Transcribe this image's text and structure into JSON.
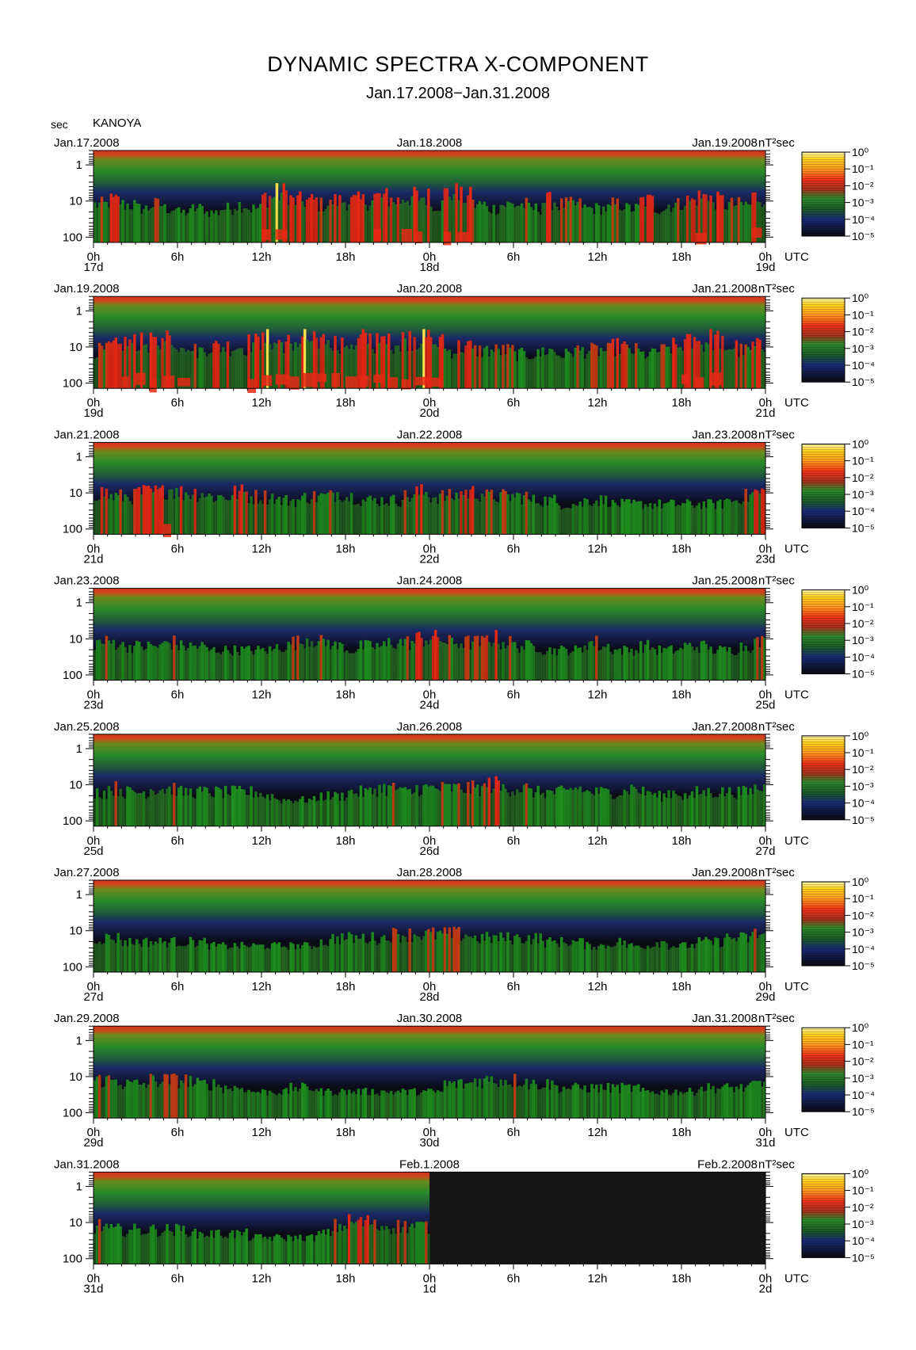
{
  "title": "DYNAMIC SPECTRA X-COMPONENT",
  "subtitle": "Jan.17.2008−Jan.31.2008",
  "station": "KANOYA",
  "y_unit_label": "sec",
  "colorbar_unit": "nT²sec",
  "colors": {
    "background": "#ffffff",
    "spectrum_quiet": "#0a0a14",
    "spectrum_low": "#141e5a",
    "spectrum_mid": "#1e8c1e",
    "spectrum_high": "#e62814",
    "spectrum_peak": "#ffe61e"
  },
  "chart_data": {
    "type": "heatmap",
    "variable": "power spectral density",
    "unit": "nT²sec",
    "y_axis": {
      "label": "sec",
      "scale": "log",
      "ticks": [
        "1",
        "10",
        "100"
      ],
      "range": [
        0.4,
        140
      ]
    },
    "x_axis": {
      "tick_labels": [
        "0h",
        "6h",
        "12h",
        "18h",
        "0h",
        "6h",
        "12h",
        "18h",
        "0h"
      ],
      "unit_label": "UTC"
    },
    "colorbar": {
      "scale": "log",
      "range": [
        1e-05,
        1
      ],
      "ticks": [
        "10⁰",
        "10⁻¹",
        "10⁻²",
        "10⁻³",
        "10⁻⁴",
        "10⁻⁵"
      ]
    },
    "panels": [
      {
        "left_date": "Jan.17.2008",
        "mid_date": "Jan.18.2008",
        "right_date": "Jan.19.2008",
        "day_labels": [
          "17d",
          "18d",
          "19d"
        ],
        "data_fraction": 1.0,
        "activity": [
          0.6,
          0.7,
          0.6,
          0.5,
          0.6,
          0.5,
          0.4,
          0.5,
          0.4,
          0.5,
          0.6,
          0.5,
          0.8,
          0.9,
          0.7,
          0.7,
          0.6,
          0.7,
          0.7,
          0.7,
          0.8,
          0.7,
          0.8,
          0.8,
          0.6,
          0.9,
          0.8,
          0.6,
          0.5,
          0.6,
          0.6,
          0.5,
          0.7,
          0.6,
          0.6,
          0.5,
          0.5,
          0.6,
          0.5,
          0.7,
          0.5,
          0.6,
          0.7,
          0.8,
          0.7,
          0.6,
          0.6,
          0.8
        ]
      },
      {
        "left_date": "Jan.19.2008",
        "mid_date": "Jan.20.2008",
        "right_date": "Jan.21.2008",
        "day_labels": [
          "19d",
          "20d",
          "21d"
        ],
        "data_fraction": 1.0,
        "activity": [
          0.6,
          0.7,
          0.8,
          0.8,
          0.8,
          0.9,
          0.8,
          0.6,
          0.7,
          0.7,
          0.7,
          0.8,
          0.9,
          0.8,
          0.8,
          0.9,
          0.9,
          0.8,
          0.8,
          0.9,
          0.8,
          0.8,
          0.9,
          0.9,
          0.8,
          0.6,
          0.7,
          0.6,
          0.6,
          0.6,
          0.5,
          0.5,
          0.6,
          0.5,
          0.6,
          0.6,
          0.6,
          0.7,
          0.6,
          0.5,
          0.6,
          0.7,
          0.8,
          0.8,
          0.9,
          0.7,
          0.6,
          0.7
        ]
      },
      {
        "left_date": "Jan.21.2008",
        "mid_date": "Jan.22.2008",
        "right_date": "Jan.23.2008",
        "day_labels": [
          "21d",
          "22d",
          "23d"
        ],
        "data_fraction": 1.0,
        "activity": [
          0.7,
          0.6,
          0.6,
          0.7,
          0.7,
          0.8,
          0.7,
          0.7,
          0.6,
          0.6,
          0.7,
          0.6,
          0.6,
          0.5,
          0.5,
          0.6,
          0.6,
          0.7,
          0.6,
          0.5,
          0.5,
          0.5,
          0.6,
          0.7,
          0.6,
          0.6,
          0.7,
          0.7,
          0.6,
          0.6,
          0.6,
          0.5,
          0.5,
          0.4,
          0.4,
          0.5,
          0.5,
          0.4,
          0.4,
          0.4,
          0.4,
          0.4,
          0.4,
          0.4,
          0.4,
          0.5,
          0.6,
          0.7
        ]
      },
      {
        "left_date": "Jan.23.2008",
        "mid_date": "Jan.24.2008",
        "right_date": "Jan.25.2008",
        "day_labels": [
          "23d",
          "24d",
          "25d"
        ],
        "data_fraction": 1.0,
        "activity": [
          0.6,
          0.6,
          0.5,
          0.5,
          0.5,
          0.6,
          0.5,
          0.5,
          0.4,
          0.4,
          0.4,
          0.4,
          0.4,
          0.5,
          0.6,
          0.7,
          0.6,
          0.5,
          0.4,
          0.5,
          0.5,
          0.6,
          0.6,
          0.7,
          0.7,
          0.6,
          0.6,
          0.6,
          0.7,
          0.6,
          0.5,
          0.5,
          0.4,
          0.4,
          0.4,
          0.6,
          0.5,
          0.4,
          0.4,
          0.5,
          0.4,
          0.4,
          0.5,
          0.5,
          0.4,
          0.4,
          0.5,
          0.6
        ]
      },
      {
        "left_date": "Jan.25.2008",
        "mid_date": "Jan.26.2008",
        "right_date": "Jan.27.2008",
        "day_labels": [
          "25d",
          "26d",
          "27d"
        ],
        "data_fraction": 1.0,
        "activity": [
          0.5,
          0.6,
          0.5,
          0.5,
          0.6,
          0.6,
          0.5,
          0.5,
          0.5,
          0.5,
          0.5,
          0.5,
          0.4,
          0.3,
          0.3,
          0.3,
          0.4,
          0.4,
          0.5,
          0.5,
          0.6,
          0.6,
          0.5,
          0.6,
          0.6,
          0.6,
          0.6,
          0.6,
          0.7,
          0.6,
          0.6,
          0.5,
          0.5,
          0.5,
          0.6,
          0.5,
          0.5,
          0.5,
          0.6,
          0.5,
          0.4,
          0.5,
          0.4,
          0.5,
          0.5,
          0.5,
          0.5,
          0.6
        ]
      },
      {
        "left_date": "Jan.27.2008",
        "mid_date": "Jan.28.2008",
        "right_date": "Jan.29.2008",
        "day_labels": [
          "27d",
          "28d",
          "29d"
        ],
        "data_fraction": 1.0,
        "activity": [
          0.5,
          0.5,
          0.4,
          0.4,
          0.4,
          0.4,
          0.4,
          0.4,
          0.3,
          0.3,
          0.3,
          0.3,
          0.3,
          0.3,
          0.3,
          0.3,
          0.4,
          0.5,
          0.5,
          0.5,
          0.5,
          0.6,
          0.6,
          0.6,
          0.6,
          0.6,
          0.6,
          0.5,
          0.5,
          0.5,
          0.5,
          0.5,
          0.4,
          0.4,
          0.4,
          0.3,
          0.3,
          0.4,
          0.3,
          0.3,
          0.4,
          0.3,
          0.3,
          0.4,
          0.4,
          0.5,
          0.5,
          0.6
        ]
      },
      {
        "left_date": "Jan.29.2008",
        "mid_date": "Jan.30.2008",
        "right_date": "Jan.31.2008",
        "day_labels": [
          "29d",
          "30d",
          "31d"
        ],
        "data_fraction": 1.0,
        "activity": [
          0.6,
          0.6,
          0.5,
          0.5,
          0.6,
          0.6,
          0.6,
          0.5,
          0.5,
          0.4,
          0.4,
          0.3,
          0.3,
          0.3,
          0.4,
          0.4,
          0.3,
          0.3,
          0.3,
          0.3,
          0.3,
          0.3,
          0.3,
          0.3,
          0.3,
          0.5,
          0.5,
          0.6,
          0.6,
          0.6,
          0.6,
          0.5,
          0.5,
          0.4,
          0.4,
          0.4,
          0.4,
          0.4,
          0.4,
          0.3,
          0.3,
          0.3,
          0.3,
          0.4,
          0.4,
          0.4,
          0.4,
          0.5
        ]
      },
      {
        "left_date": "Jan.31.2008",
        "mid_date": "Feb.1.2008",
        "right_date": "Feb.2.2008",
        "day_labels": [
          "31d",
          "1d",
          "2d"
        ],
        "data_fraction": 0.5,
        "activity": [
          0.6,
          0.5,
          0.5,
          0.5,
          0.5,
          0.5,
          0.5,
          0.4,
          0.4,
          0.4,
          0.4,
          0.3,
          0.3,
          0.3,
          0.3,
          0.3,
          0.4,
          0.6,
          0.7,
          0.7,
          0.6,
          0.6,
          0.6,
          0.6
        ]
      }
    ]
  }
}
